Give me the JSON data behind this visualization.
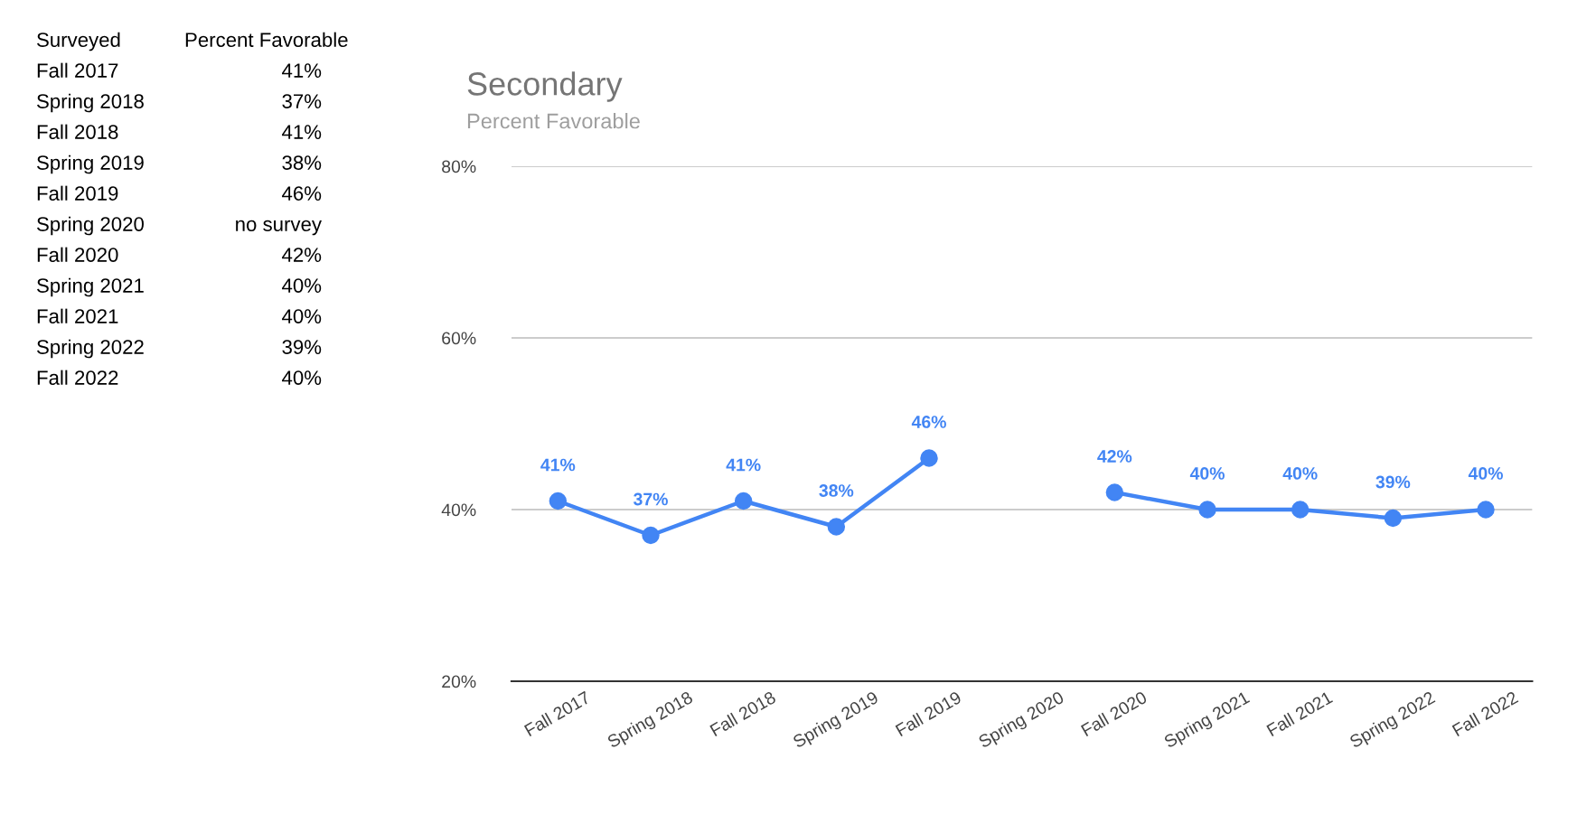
{
  "chart_data": [
    {
      "type": "other",
      "annotations": [
        "Surveyed",
        "Percent Favorable",
        "Fall 2017",
        "41%",
        "Spring 2018",
        "37%",
        "Fall 2018",
        "41%",
        "Spring 2019",
        "38%",
        "Fall 2019",
        "46%",
        "Spring 2020",
        "no survey",
        "Fall 2020",
        "42%",
        "Spring 2021",
        "40%",
        "Fall 2021",
        "40%",
        "Spring 2022",
        "39%",
        "Fall 2022",
        "40%"
      ]
    },
    {
      "type": "line",
      "title": "Secondary",
      "subtitle": "Percent Favorable",
      "categories": [
        "Fall 2017",
        "Spring 2018",
        "Fall 2018",
        "Spring 2019",
        "Fall 2019",
        "Spring 2020",
        "Fall 2020",
        "Spring 2021",
        "Fall 2021",
        "Spring 2022",
        "Fall 2022"
      ],
      "series": [
        {
          "color": "#4285f4",
          "values": [
            41,
            37,
            41,
            38,
            46,
            null,
            42,
            40,
            40,
            39,
            40
          ],
          "value_labels": [
            "41%",
            "37%",
            "41%",
            "38%",
            "46%",
            null,
            "42%",
            "40%",
            "40%",
            "39%",
            "40%"
          ]
        }
      ],
      "ylim": [
        20,
        80
      ],
      "yticks": [
        {
          "value": 20,
          "label": "20%"
        },
        {
          "value": 40,
          "label": "40%"
        },
        {
          "value": 60,
          "label": "60%"
        },
        {
          "value": 80,
          "label": "80%"
        }
      ],
      "grid": "y",
      "marker": "circle",
      "line_style": "solid"
    }
  ]
}
